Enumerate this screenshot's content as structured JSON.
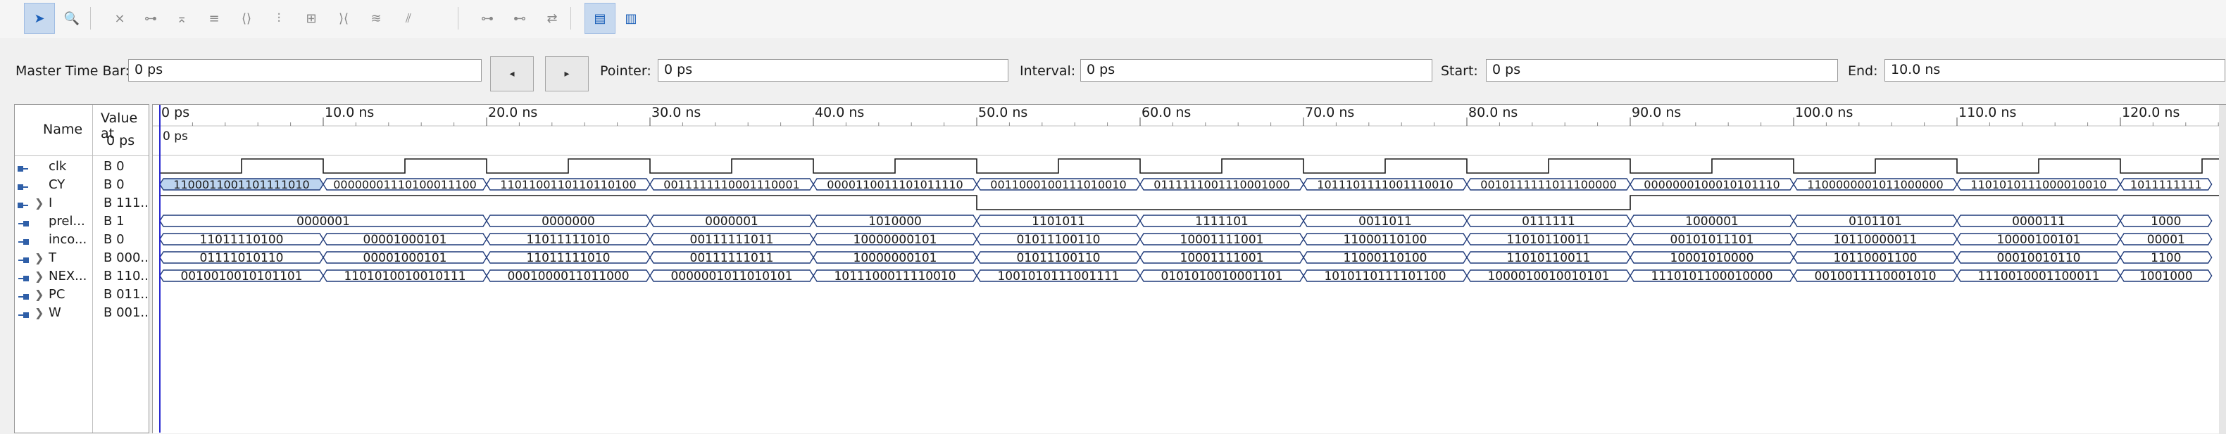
{
  "toolbar": {
    "buttons": [
      {
        "icon": "select-arrow-icon",
        "glyph": "➤",
        "active": true,
        "blue": true
      },
      {
        "icon": "zoom-icon",
        "glyph": "🔍",
        "blue": true
      },
      {
        "icon": "forcing-low-icon",
        "glyph": "⨯"
      },
      {
        "icon": "forcing-high-icon",
        "glyph": "⊶"
      },
      {
        "icon": "forcing-unknown-icon",
        "glyph": "⌅"
      },
      {
        "icon": "forcing-invert-icon",
        "glyph": "≡"
      },
      {
        "icon": "clock-icon",
        "glyph": "⟨⟩"
      },
      {
        "icon": "count-value-icon",
        "glyph": "⫶"
      },
      {
        "icon": "random-value-icon",
        "glyph": "⊞"
      },
      {
        "icon": "arbitrary-value-icon",
        "glyph": "⟩⟨"
      },
      {
        "icon": "overwrite-icon",
        "glyph": "≋"
      },
      {
        "icon": "snap-icon",
        "glyph": "⫽"
      },
      {
        "icon": "group-icon",
        "glyph": "⊶"
      },
      {
        "icon": "ungroup-icon",
        "glyph": "⊷"
      },
      {
        "icon": "reverse-icon",
        "glyph": "⇄"
      },
      {
        "icon": "waveform-settings-icon",
        "glyph": "▤",
        "active": true
      },
      {
        "icon": "bus-display-icon",
        "glyph": "▥",
        "blue": true
      }
    ]
  },
  "timebar": {
    "master_label": "Master Time Bar:",
    "master_value": "0 ps",
    "prev_glyph": "◂",
    "next_glyph": "▸",
    "pointer_label": "Pointer:",
    "pointer_value": "0 ps",
    "interval_label": "Interval:",
    "interval_value": "0 ps",
    "start_label": "Start:",
    "start_value": "0 ps",
    "end_label": "End:",
    "end_value": "10.0 ns"
  },
  "columns": {
    "name": "Name",
    "value_line1": "Value at",
    "value_line2": "0 ps"
  },
  "timeline": {
    "start_ps": 0,
    "major_ps": 10000,
    "visible_end_ps": 123000,
    "labels": [
      "0 ps",
      "10.0 ns",
      "20.0 ns",
      "30.0 ns",
      "40.0 ns",
      "50.0 ns",
      "60.0 ns",
      "70.0 ns",
      "80.0 ns",
      "90.0 ns",
      "100.0 ns",
      "110.0 ns",
      "120.0 ns"
    ],
    "cursor_label": "0 ps"
  },
  "signals": [
    {
      "name": "clk",
      "value": "B 0",
      "type": "clock",
      "half_period_ps": 5000,
      "icon": "input-pin-icon",
      "expandable": false
    },
    {
      "name": "CY",
      "value": "B 0",
      "type": "bit_and_bus",
      "icon": "input-pin-icon",
      "expandable": false,
      "bus_texts": [
        "1100011001101111010",
        "00000001110100011100",
        "1101100110110110100",
        "0011111110001110001",
        "0000110011101011110",
        "0011000100111010010",
        "0111111001110001000",
        "1011101111001110010",
        "0010111111011100000",
        "0000000100010101110",
        "1100000001011000000",
        "1101010111000010010",
        "1011111111"
      ],
      "bit_ps": [
        0,
        50000,
        90000
      ],
      "bit_vals": [
        1,
        0,
        1
      ]
    },
    {
      "name": "I",
      "value": "B 111...",
      "type": "bus_empty",
      "icon": "input-pin-icon",
      "expandable": true
    },
    {
      "name": "prel...",
      "value": "B 1",
      "type": "bus",
      "icon": "output-pin-icon",
      "expandable": false,
      "bus_texts": [
        "0000001",
        "0000000",
        "0000001",
        "1010000",
        "1101011",
        "1111101",
        "0011011",
        "0111111",
        "1000001",
        "0101101",
        "0000111",
        "1000"
      ],
      "starts_ps": [
        0,
        20000,
        30000,
        40000,
        50000,
        60000,
        70000,
        80000,
        90000,
        100000,
        110000,
        120000
      ]
    },
    {
      "name": "inco...",
      "value": "B 0",
      "type": "bus",
      "icon": "output-pin-icon",
      "expandable": false,
      "bus_texts": [
        "11011110100",
        "00001000101",
        "11011111010",
        "00111111011",
        "10000000101",
        "01011100110",
        "10001111001",
        "11000110100",
        "11010110011",
        "00101011101",
        "10110000011",
        "10000100101",
        "00001"
      ],
      "starts_ps": [
        0,
        10000,
        20000,
        30000,
        40000,
        50000,
        60000,
        70000,
        80000,
        90000,
        100000,
        110000,
        120000
      ]
    },
    {
      "name": "T",
      "value": "B 000...",
      "type": "bus",
      "icon": "output-pin-icon",
      "expandable": true,
      "bus_texts": [
        "01111010110",
        "00001000101",
        "11011111010",
        "00111111011",
        "10000000101",
        "01011100110",
        "10001111001",
        "11000110100",
        "11010110011",
        "10001010000",
        "10110001100",
        "00010010110",
        "1100"
      ],
      "starts_ps": [
        0,
        10000,
        20000,
        30000,
        40000,
        50000,
        60000,
        70000,
        80000,
        90000,
        100000,
        110000,
        120000
      ]
    },
    {
      "name": "NEX...",
      "value": "B 110...",
      "type": "bus",
      "icon": "output-pin-icon",
      "expandable": true,
      "bus_texts": [
        "0010010010101101",
        "1101010010010111",
        "0001000011011000",
        "0000001011010101",
        "1011100011110010",
        "1001010111001111",
        "0101010010001101",
        "1010110111101100",
        "1000010010010101",
        "1110101100010000",
        "0010011110001010",
        "1110010001100011",
        "1001000"
      ],
      "starts_ps": [
        0,
        10000,
        20000,
        30000,
        40000,
        50000,
        60000,
        70000,
        80000,
        90000,
        100000,
        110000,
        120000
      ]
    },
    {
      "name": "PC",
      "value": "B 011...",
      "type": "bus_empty",
      "icon": "output-pin-icon",
      "expandable": true
    },
    {
      "name": "W",
      "value": "B 001...",
      "type": "bus_empty",
      "icon": "output-pin-icon",
      "expandable": true
    }
  ],
  "colors": {
    "wave": "#1c1c1c",
    "bus_fill": "#ffffff",
    "bus_stroke": "#1f3a7a",
    "selected_fill": "#bcd4ef",
    "cursor": "#2a2ad0",
    "grid": "#d9d9d9"
  }
}
